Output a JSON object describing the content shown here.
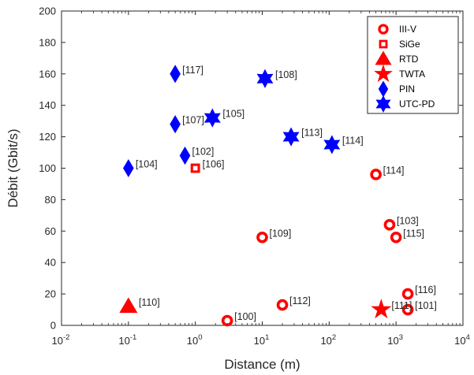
{
  "chart_data": {
    "type": "scatter",
    "xlabel": "Distance (m)",
    "ylabel": "Débit (Gbit/s)",
    "xscale": "log",
    "xlim": [
      0.01,
      10000
    ],
    "ylim": [
      0,
      200
    ],
    "grid": false,
    "legend_position": "top-right",
    "x_ticks": [
      {
        "value": 0.01,
        "base": "10",
        "exp": "-2"
      },
      {
        "value": 0.1,
        "base": "10",
        "exp": "-1"
      },
      {
        "value": 1,
        "base": "10",
        "exp": "0"
      },
      {
        "value": 10,
        "base": "10",
        "exp": "1"
      },
      {
        "value": 100,
        "base": "10",
        "exp": "2"
      },
      {
        "value": 1000,
        "base": "10",
        "exp": "3"
      },
      {
        "value": 10000,
        "base": "10",
        "exp": "4"
      }
    ],
    "y_ticks": [
      0,
      20,
      40,
      60,
      80,
      100,
      120,
      140,
      160,
      180,
      200
    ],
    "series": [
      {
        "name": "III-V",
        "marker": "circle",
        "color": "#ff0000",
        "points": [
          {
            "x": 3,
            "y": 3,
            "label": "[100]"
          },
          {
            "x": 1500,
            "y": 10,
            "label": "[101]"
          },
          {
            "x": 800,
            "y": 64,
            "label": "[103]"
          },
          {
            "x": 10,
            "y": 56,
            "label": "[109]"
          },
          {
            "x": 20,
            "y": 13,
            "label": "[112]"
          },
          {
            "x": 500,
            "y": 96,
            "label": "[114]"
          },
          {
            "x": 1000,
            "y": 56,
            "label": "[115]"
          },
          {
            "x": 1500,
            "y": 20,
            "label": "[116]"
          }
        ]
      },
      {
        "name": "SiGe",
        "marker": "square",
        "color": "#ff0000",
        "points": [
          {
            "x": 1,
            "y": 100,
            "label": "[106]"
          }
        ]
      },
      {
        "name": "RTD",
        "marker": "triangle",
        "color": "#ff0000",
        "points": [
          {
            "x": 0.1,
            "y": 12,
            "label": "[110]"
          }
        ]
      },
      {
        "name": "TWTA",
        "marker": "star",
        "color": "#ff0000",
        "points": [
          {
            "x": 600,
            "y": 10,
            "label": "[111]"
          }
        ]
      },
      {
        "name": "PIN",
        "marker": "diamond",
        "color": "#0000ff",
        "points": [
          {
            "x": 0.7,
            "y": 108,
            "label": "[102]"
          },
          {
            "x": 0.1,
            "y": 100,
            "label": "[104]"
          },
          {
            "x": 0.5,
            "y": 128,
            "label": "[107]"
          },
          {
            "x": 0.5,
            "y": 160,
            "label": "[117]"
          }
        ]
      },
      {
        "name": "UTC-PD",
        "marker": "hexagram",
        "color": "#0000ff",
        "points": [
          {
            "x": 1.8,
            "y": 132,
            "label": "[105]"
          },
          {
            "x": 11,
            "y": 157,
            "label": "[108]"
          },
          {
            "x": 27,
            "y": 120,
            "label": "[113]"
          },
          {
            "x": 110,
            "y": 115,
            "label": "[114]"
          }
        ]
      }
    ]
  }
}
